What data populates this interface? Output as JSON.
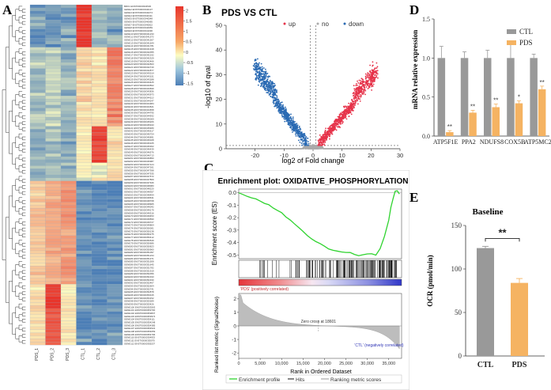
{
  "panels": {
    "a": "A",
    "b": "B",
    "c": "C",
    "d": "D",
    "e": "E"
  },
  "colors": {
    "heat_high": "#e8352b",
    "heat_mid": "#fdfcc2",
    "heat_low": "#4c7eb6",
    "volcano_up": "#e6334a",
    "volcano_down": "#2a6ab3",
    "volcano_no": "#aaaaaa",
    "ctl_bar": "#999999",
    "pds_bar": "#f5b362",
    "gsea_curve": "#2fd32f",
    "es_red": "#e5343a",
    "es_blue": "#3037c8"
  },
  "chart_data": [
    {
      "type": "heatmap",
      "id": "A",
      "columns": [
        "PDS_1",
        "PDS_2",
        "PDS_3",
        "CTL_1",
        "CTL_2",
        "CTL_3"
      ],
      "row_label_example": "BRO1 ENST00000334530",
      "colorbar": {
        "ticks": [
          2,
          1.5,
          1,
          0.5,
          0,
          -0.5,
          -1,
          -1.5
        ],
        "tick_labels": [
          "2",
          "1.5",
          "1",
          "0.5",
          "0",
          "-0.5",
          "-1",
          "-1.5"
        ]
      }
    },
    {
      "type": "scatter",
      "id": "B",
      "title": "PDS VS CTL",
      "legend": [
        "up",
        "no",
        "down"
      ],
      "xlabel": "log2 of Fold change",
      "ylabel": "-log10 of qval",
      "xlim": [
        -30,
        30
      ],
      "ylim": [
        0,
        50
      ],
      "xticks": [
        -20,
        -10,
        0,
        10,
        20,
        30
      ],
      "yticks": [
        0,
        10,
        20,
        30,
        40,
        50
      ]
    },
    {
      "type": "line",
      "id": "C",
      "title": "Enrichment plot: OXIDATIVE_PHOSPHORYLATION",
      "ylabel_top": "Enrichment score (ES)",
      "yticks_top": [
        0.0,
        -0.1,
        -0.2,
        -0.3,
        -0.4,
        -0.5
      ],
      "ylabel_bottom": "Ranked list metric (Signal2Noise)",
      "yticks_bottom": [
        2,
        1,
        0,
        -1,
        -2
      ],
      "xlabel": "Rank in Ordered Dataset",
      "xlim": [
        0,
        38000
      ],
      "xticks": [
        0,
        5000,
        10000,
        15000,
        20000,
        25000,
        30000,
        35000
      ],
      "xtick_labels": [
        "0",
        "5,000",
        "10,000",
        "15,000",
        "20,000",
        "25,000",
        "30,000",
        "35,000"
      ],
      "pos_label": "'PDS' (positively correlated)",
      "neg_label": "'CTL' (negatively correlated)",
      "zero_cross": "Zero cross at 18601",
      "legend": [
        "Enrichment profile",
        "Hits",
        "Ranking metric scores"
      ],
      "es_curve": {
        "x": [
          0,
          1000,
          2000,
          3000,
          4000,
          5000,
          6000,
          7000,
          8000,
          9000,
          10000,
          11000,
          12000,
          13000,
          14000,
          15000,
          16000,
          17000,
          18000,
          19000,
          20000,
          21000,
          22000,
          23000,
          24000,
          25000,
          26000,
          27000,
          28000,
          29000,
          30000,
          31000,
          32000,
          33000,
          34000,
          35000,
          35500,
          36000,
          36500,
          37000,
          37500
        ],
        "y": [
          0.0,
          -0.015,
          -0.03,
          -0.04,
          -0.05,
          -0.065,
          -0.085,
          -0.1,
          -0.12,
          -0.14,
          -0.16,
          -0.19,
          -0.22,
          -0.25,
          -0.28,
          -0.31,
          -0.34,
          -0.37,
          -0.39,
          -0.41,
          -0.43,
          -0.45,
          -0.46,
          -0.47,
          -0.475,
          -0.48,
          -0.48,
          -0.495,
          -0.51,
          -0.5,
          -0.49,
          -0.49,
          -0.5,
          -0.45,
          -0.35,
          -0.22,
          -0.12,
          -0.05,
          0.01,
          0.015,
          -0.01
        ]
      }
    },
    {
      "type": "bar",
      "id": "D",
      "categories": [
        "ATP5F1E",
        "PPA2",
        "NDUFS8",
        "COX5B",
        "ATP5MC2"
      ],
      "series": [
        {
          "name": "CTL",
          "values": [
            1.0,
            1.0,
            1.0,
            1.0,
            1.0
          ],
          "errors": [
            0.15,
            0.08,
            0.1,
            0.2,
            0.05
          ]
        },
        {
          "name": "PDS",
          "values": [
            0.05,
            0.3,
            0.37,
            0.42,
            0.6
          ],
          "errors": [
            0.02,
            0.03,
            0.04,
            0.03,
            0.04
          ]
        }
      ],
      "significance": [
        "**",
        "**",
        "**",
        "*",
        "**"
      ],
      "ylabel": "mRNA relative expression",
      "ylim": [
        0,
        1.5
      ],
      "yticks": [
        0.0,
        0.5,
        1.0,
        1.5
      ],
      "ytick_labels": [
        "0.0",
        "0.5",
        "1.0",
        "1.5"
      ]
    },
    {
      "type": "bar",
      "id": "E",
      "title": "Baseline",
      "categories": [
        "CTL",
        "PDS"
      ],
      "values": [
        124,
        84
      ],
      "errors": [
        2,
        5
      ],
      "significance": "**",
      "ylabel": "OCR (pmol/min)",
      "ylim": [
        0,
        150
      ],
      "yticks": [
        0,
        50,
        100,
        150
      ],
      "ytick_labels": [
        "0",
        "50",
        "100",
        "150"
      ]
    }
  ]
}
